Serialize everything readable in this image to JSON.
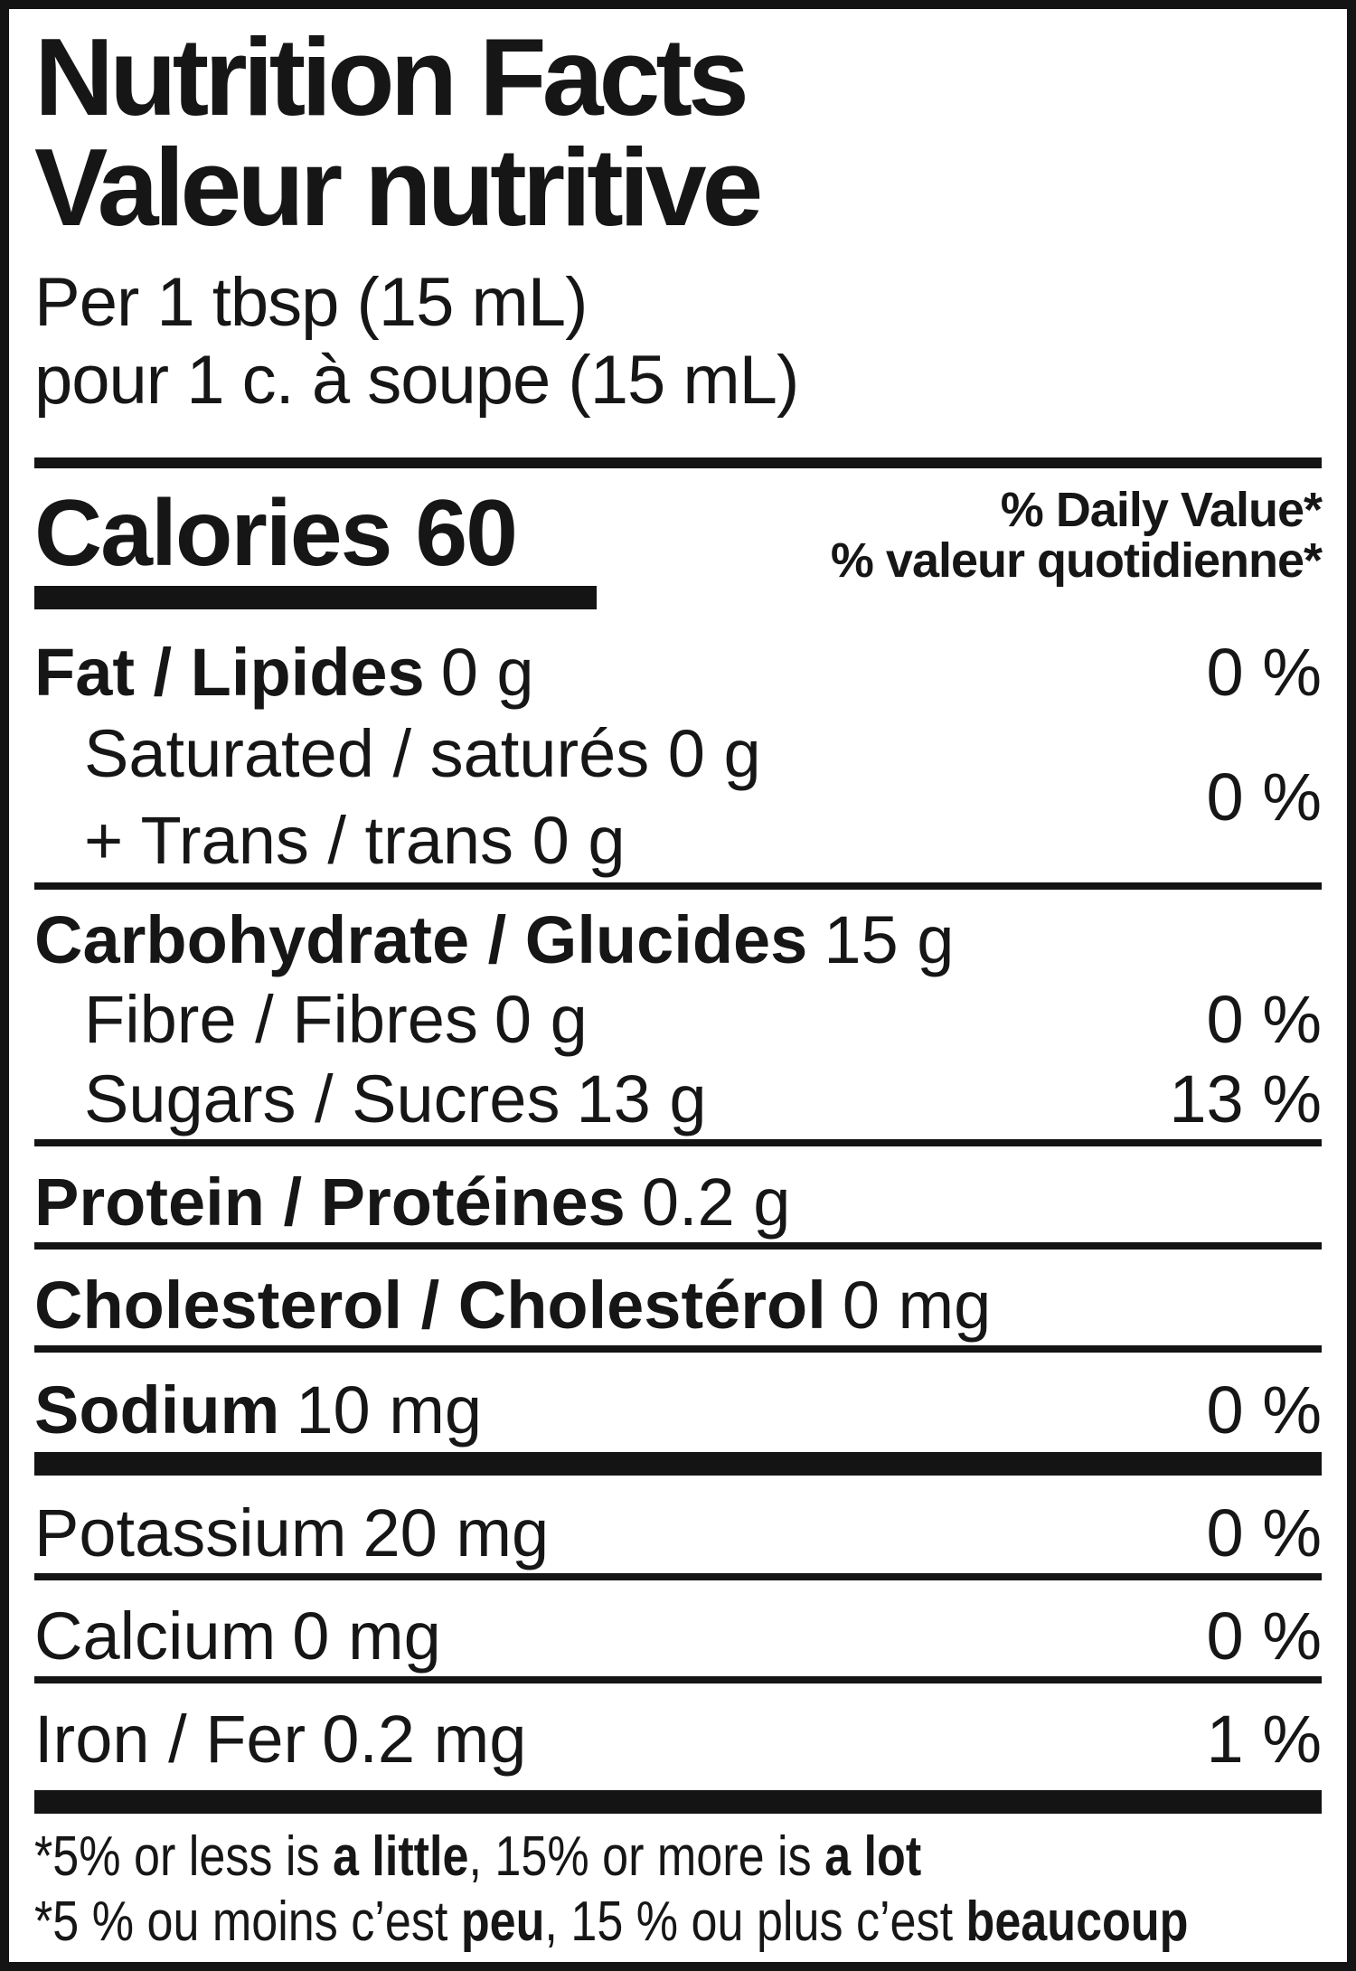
{
  "nutrition_label": {
    "title_en": "Nutrition Facts",
    "title_fr": "Valeur nutritive",
    "serving_en": "Per 1 tbsp (15 mL)",
    "serving_fr": "pour 1 c. à soupe (15 mL)",
    "calories": {
      "label": "Calories",
      "value": "60"
    },
    "dv_header_en": "% Daily Value*",
    "dv_header_fr": "% valeur quotidienne*",
    "rows": {
      "fat": {
        "name": "Fat / Lipides",
        "amount": "0 g",
        "dv": "0 %"
      },
      "saturated_trans": {
        "line1": "Saturated / saturés 0 g",
        "line2": "+ Trans / trans 0 g",
        "dv": "0 %"
      },
      "carbohydrate": {
        "name": "Carbohydrate / Glucides",
        "amount": "15 g"
      },
      "fibre": {
        "name": "Fibre / Fibres",
        "amount": "0 g",
        "dv": "0 %"
      },
      "sugars": {
        "name": "Sugars / Sucres",
        "amount": "13 g",
        "dv": "13 %"
      },
      "protein": {
        "name": "Protein / Protéines",
        "amount": "0.2 g"
      },
      "cholesterol": {
        "name": "Cholesterol / Cholestérol",
        "amount": "0 mg"
      },
      "sodium": {
        "name": "Sodium",
        "amount": "10 mg",
        "dv": "0 %"
      },
      "potassium": {
        "name": "Potassium",
        "amount": "20 mg",
        "dv": "0 %"
      },
      "calcium": {
        "name": "Calcium",
        "amount": "0 mg",
        "dv": "0 %"
      },
      "iron": {
        "name": "Iron / Fer",
        "amount": "0.2 mg",
        "dv": "1 %"
      }
    },
    "footnote_en": {
      "text1": "*5% or less is ",
      "bold1": "a little",
      "text2": ", 15% or more is ",
      "bold2": "a lot"
    },
    "footnote_fr": {
      "text1": "*5 % ou moins c’est ",
      "bold1": "peu",
      "text2": ", 15 % ou plus c’est ",
      "bold2": "beaucoup"
    },
    "colors": {
      "ink": "#141414",
      "background": "#ffffff"
    }
  }
}
